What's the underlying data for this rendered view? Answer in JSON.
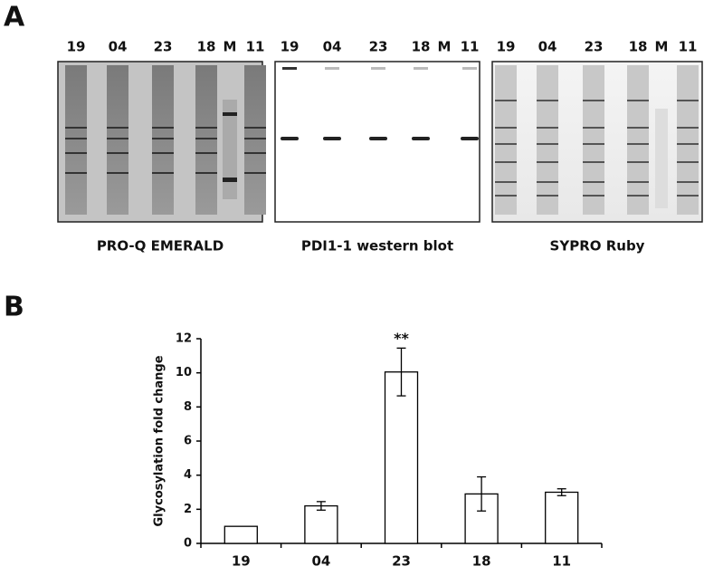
{
  "panel_a": {
    "label": "A",
    "gels": [
      {
        "lanes": [
          "19",
          "04",
          "23",
          "18",
          "M",
          "11"
        ],
        "caption": "PRO-Q EMERALD"
      },
      {
        "lanes": [
          "19",
          "04",
          "23",
          "18",
          "M",
          "11"
        ],
        "caption": "PDI1-1 western blot"
      },
      {
        "lanes": [
          "19",
          "04",
          "23",
          "18",
          "M",
          "11"
        ],
        "caption": "SYPRO Ruby"
      }
    ]
  },
  "panel_b": {
    "label": "B"
  },
  "chart_data": {
    "type": "bar",
    "ylabel": "Glycosylation fold change",
    "categories": [
      "19",
      "04",
      "23",
      "18",
      "11"
    ],
    "values": [
      1.0,
      2.2,
      10.05,
      2.9,
      3.0
    ],
    "errors": [
      0,
      0.25,
      1.4,
      1.0,
      0.2
    ],
    "color": "#ffffff",
    "ylim": [
      0,
      12
    ],
    "yticks": [
      0,
      2,
      4,
      6,
      8,
      10,
      12
    ],
    "annotations": [
      {
        "text": "**",
        "category": "23"
      }
    ]
  }
}
